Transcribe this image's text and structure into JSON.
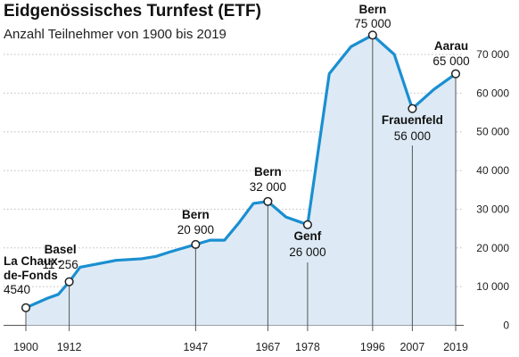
{
  "colors": {
    "line": "#1a8fd1",
    "area": "#ddeaf5"
  },
  "chart_data": {
    "type": "area",
    "title": "Eidgenössisches Turnfest (ETF)",
    "subtitle": "Anzahl Teilnehmer von 1900 bis 2019",
    "xlim": [
      1900,
      2019
    ],
    "ylim": [
      0,
      75000
    ],
    "y_ticks": [
      0,
      10000,
      20000,
      30000,
      40000,
      50000,
      60000,
      70000
    ],
    "y_tick_labels": [
      "0",
      "10 000",
      "20 000",
      "30 000",
      "40 000",
      "50 000",
      "60 000",
      "70 000"
    ],
    "x_tick_labels": [
      "1900",
      "1912",
      "1947",
      "1967",
      "1978",
      "1996",
      "2007",
      "2019"
    ],
    "x_ticks": [
      1900,
      1912,
      1947,
      1967,
      1978,
      1996,
      2007,
      2019
    ],
    "grid": true,
    "series": [
      {
        "x": [
          1900,
          1906,
          1909,
          1912,
          1915,
          1925,
          1932,
          1936,
          1940,
          1947,
          1951,
          1955,
          1959,
          1963,
          1967,
          1972,
          1975,
          1978,
          1984,
          1990,
          1996,
          2002,
          2007,
          2013,
          2019
        ],
        "values": [
          4540,
          7000,
          8000,
          11256,
          15000,
          16800,
          17200,
          17800,
          19000,
          20900,
          22000,
          22000,
          26500,
          31500,
          32000,
          28000,
          27000,
          26000,
          65000,
          72000,
          75000,
          70000,
          56000,
          61000,
          65000
        ]
      }
    ],
    "annotations": [
      {
        "x": 1900,
        "y": 4540,
        "name_lines": [
          "La Chaux-",
          "de-Fonds"
        ],
        "value": "4540"
      },
      {
        "x": 1912,
        "y": 11256,
        "name_lines": [
          "Basel"
        ],
        "value": "11 256"
      },
      {
        "x": 1947,
        "y": 20900,
        "name_lines": [
          "Bern"
        ],
        "value": "20 900"
      },
      {
        "x": 1967,
        "y": 32000,
        "name_lines": [
          "Bern"
        ],
        "value": "32 000"
      },
      {
        "x": 1978,
        "y": 26000,
        "name_lines": [
          "Genf"
        ],
        "value": "26 000"
      },
      {
        "x": 1996,
        "y": 75000,
        "name_lines": [
          "Bern"
        ],
        "value": "75 000"
      },
      {
        "x": 2007,
        "y": 56000,
        "name_lines": [
          "Frauenfeld"
        ],
        "value": "56 000"
      },
      {
        "x": 2019,
        "y": 65000,
        "name_lines": [
          "Aarau"
        ],
        "value": "65 000"
      }
    ]
  }
}
